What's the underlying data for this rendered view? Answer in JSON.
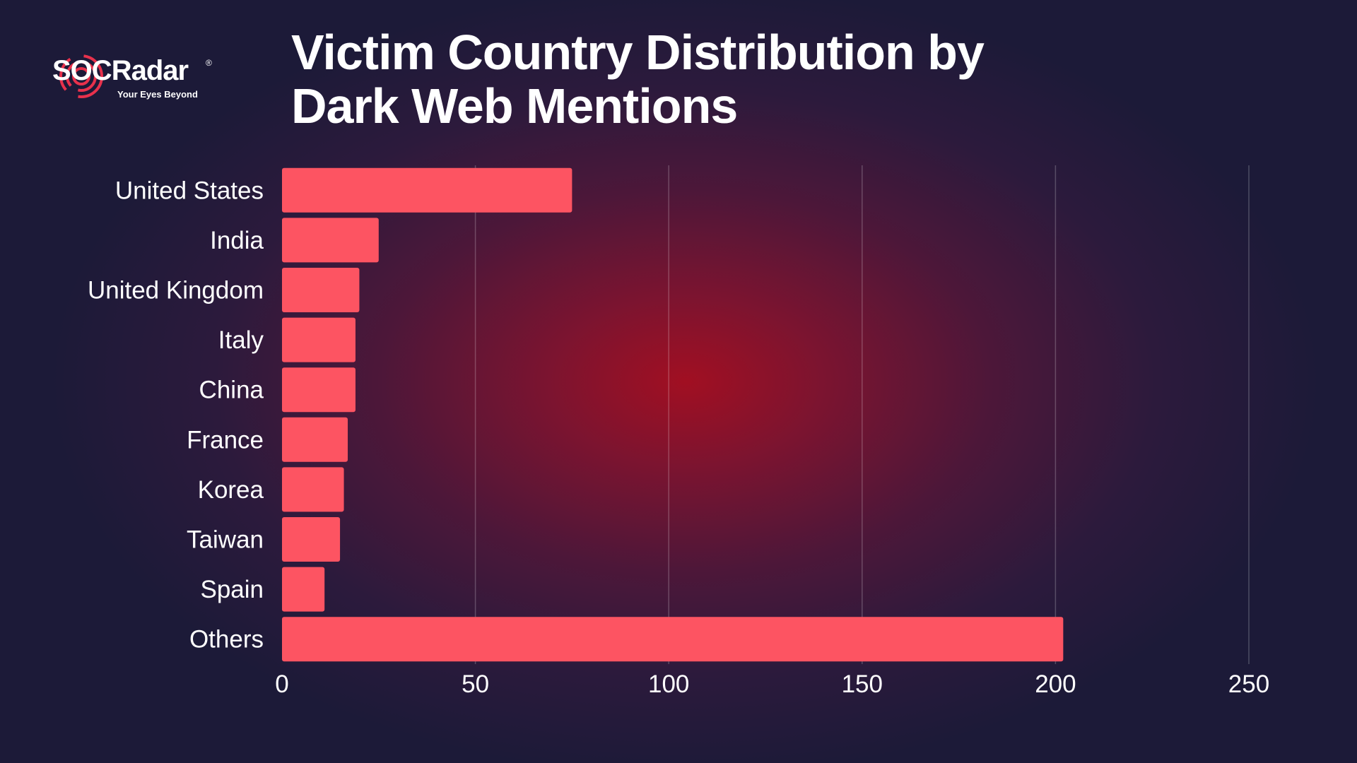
{
  "brand": {
    "name": "SOCRadar",
    "name_prefix": "SOC",
    "name_suffix": "Radar",
    "registered_mark": "®",
    "tagline": "Your Eyes Beyond"
  },
  "colors": {
    "bar": "#fd5462",
    "accent": "#e8314c",
    "text": "#ffffff",
    "background": "#1c1a38"
  },
  "chart_data": {
    "type": "bar",
    "orientation": "horizontal",
    "title": "Victim Country Distribution by Dark Web Mentions",
    "xlabel": "",
    "ylabel": "",
    "categories": [
      "United States",
      "India",
      "United Kingdom",
      "Italy",
      "China",
      "France",
      "Korea",
      "Taiwan",
      "Spain",
      "Others"
    ],
    "values": [
      75,
      25,
      20,
      19,
      19,
      17,
      16,
      15,
      11,
      202
    ],
    "xlim": [
      0,
      250
    ],
    "xticks": [
      0,
      50,
      100,
      150,
      200,
      250
    ],
    "xtick_labels": [
      "0",
      "50",
      "100",
      "150",
      "200",
      "250"
    ],
    "grid": true,
    "legend": "none"
  }
}
